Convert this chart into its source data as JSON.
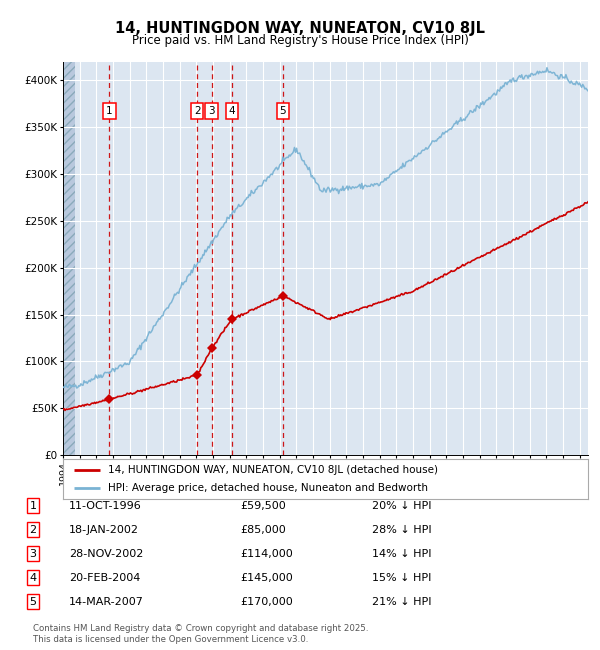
{
  "title": "14, HUNTINGDON WAY, NUNEATON, CV10 8JL",
  "subtitle": "Price paid vs. HM Land Registry's House Price Index (HPI)",
  "background_color": "#ffffff",
  "plot_bg_color": "#dce6f1",
  "hatch_color": "#b8c8dd",
  "grid_color": "#ffffff",
  "sale_dates_x": [
    1996.78,
    2002.05,
    2002.91,
    2004.13,
    2007.2
  ],
  "sale_prices_y": [
    59500,
    85000,
    114000,
    145000,
    170000
  ],
  "sale_labels": [
    "1",
    "2",
    "3",
    "4",
    "5"
  ],
  "legend_line1": "14, HUNTINGDON WAY, NUNEATON, CV10 8JL (detached house)",
  "legend_line2": "HPI: Average price, detached house, Nuneaton and Bedworth",
  "table_rows": [
    [
      "1",
      "11-OCT-1996",
      "£59,500",
      "20% ↓ HPI"
    ],
    [
      "2",
      "18-JAN-2002",
      "£85,000",
      "28% ↓ HPI"
    ],
    [
      "3",
      "28-NOV-2002",
      "£114,000",
      "14% ↓ HPI"
    ],
    [
      "4",
      "20-FEB-2004",
      "£145,000",
      "15% ↓ HPI"
    ],
    [
      "5",
      "14-MAR-2007",
      "£170,000",
      "21% ↓ HPI"
    ]
  ],
  "footer": "Contains HM Land Registry data © Crown copyright and database right 2025.\nThis data is licensed under the Open Government Licence v3.0.",
  "red_line_color": "#cc0000",
  "blue_line_color": "#7ab3d4",
  "dashed_color": "#cc0000",
  "marker_color": "#cc0000",
  "xmin": 1994.0,
  "xmax": 2025.5,
  "ymin": 0,
  "ymax": 420000
}
